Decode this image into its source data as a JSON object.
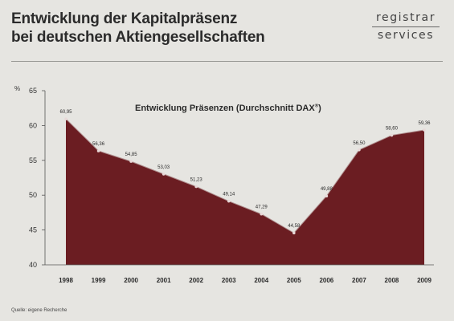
{
  "header": {
    "title_line1": "Entwicklung der Kapitalpräsenz",
    "title_line2": "bei deutschen Aktiengesellschaften"
  },
  "logo": {
    "line1": "registrar",
    "line2": "services"
  },
  "source": "Quelle: eigene Recherche",
  "chart_data": {
    "type": "area",
    "title": "Entwicklung Präsenzen (Durchschnitt DAX",
    "title_suffix": "®",
    "title_close": ")",
    "ylabel": "%",
    "xlabel": "",
    "ylim": [
      40,
      65
    ],
    "yticks": [
      40,
      45,
      50,
      55,
      60,
      65
    ],
    "categories": [
      "1998",
      "1999",
      "2000",
      "2001",
      "2002",
      "2003",
      "2004",
      "2005",
      "2006",
      "2007",
      "2008",
      "2009"
    ],
    "values": [
      60.95,
      56.36,
      54.85,
      53.03,
      51.23,
      49.14,
      47.29,
      44.58,
      49.88,
      56.5,
      58.6,
      59.36
    ],
    "value_labels": [
      "60,95",
      "56,36",
      "54,85",
      "53,03",
      "51,23",
      "49,14",
      "47,29",
      "44,58",
      "49,88",
      "56,50",
      "58,60",
      "59,36"
    ],
    "fill_color": "#6b1d22",
    "grid": false
  }
}
